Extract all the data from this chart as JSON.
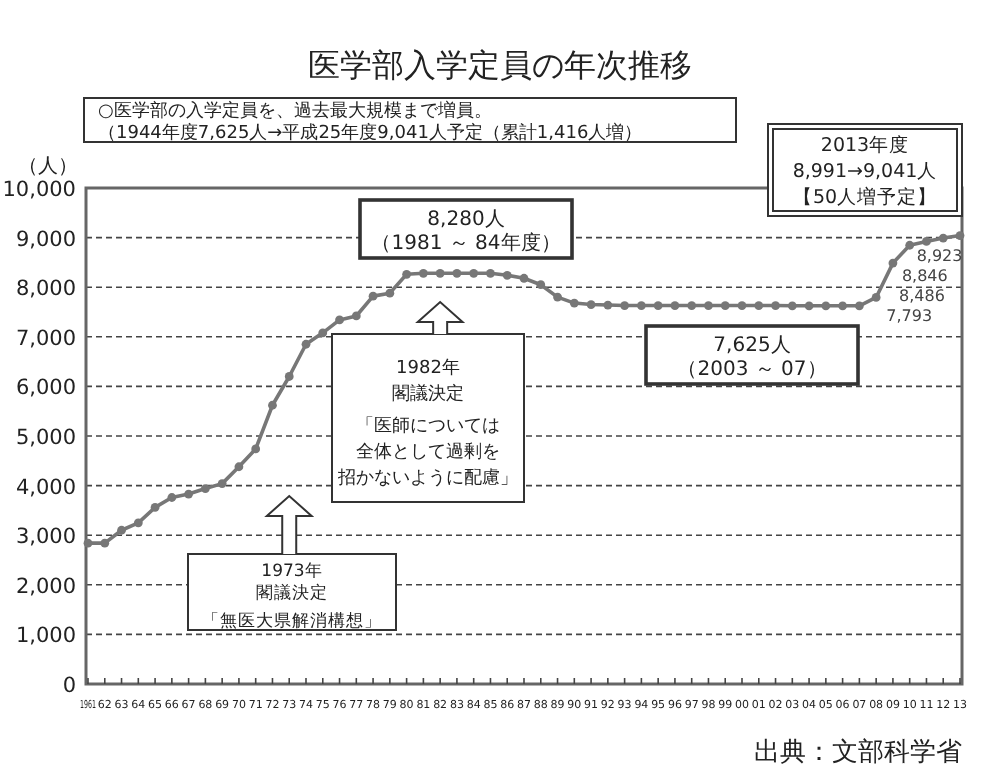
{
  "chart_data": {
    "type": "line",
    "title": "医学部入学定員の年次推移",
    "ylabel": "（人）",
    "x": [
      1961,
      1962,
      1963,
      1964,
      1965,
      1966,
      1967,
      1968,
      1969,
      1970,
      1971,
      1972,
      1973,
      1974,
      1975,
      1976,
      1977,
      1978,
      1979,
      1980,
      1981,
      1982,
      1983,
      1984,
      1985,
      1986,
      1987,
      1988,
      1989,
      1990,
      1991,
      1992,
      1993,
      1994,
      1995,
      1996,
      1997,
      1998,
      1999,
      2000,
      2001,
      2002,
      2003,
      2004,
      2005,
      2006,
      2007,
      2008,
      2009,
      2010,
      2011,
      2012,
      2013
    ],
    "series": [
      {
        "color": "#777777",
        "values": [
          2840,
          2840,
          3100,
          3250,
          3560,
          3760,
          3830,
          3940,
          4040,
          4380,
          4740,
          5620,
          6200,
          6850,
          7080,
          7340,
          7420,
          7820,
          7880,
          8260,
          8280,
          8280,
          8280,
          8280,
          8280,
          8240,
          8180,
          8050,
          7800,
          7680,
          7650,
          7640,
          7630,
          7630,
          7630,
          7630,
          7630,
          7630,
          7630,
          7630,
          7630,
          7630,
          7625,
          7625,
          7625,
          7625,
          7625,
          7793,
          8486,
          8846,
          8923,
          8991,
          9041
        ],
        "value_labels": [
          null,
          null,
          null,
          null,
          null,
          null,
          null,
          null,
          null,
          null,
          null,
          null,
          null,
          null,
          null,
          null,
          null,
          null,
          null,
          null,
          null,
          null,
          null,
          null,
          null,
          null,
          null,
          null,
          null,
          null,
          null,
          null,
          null,
          null,
          null,
          null,
          null,
          null,
          null,
          null,
          null,
          null,
          null,
          null,
          null,
          null,
          null,
          "7,793",
          "8,486",
          "8,846",
          "8,923",
          null,
          null
        ]
      }
    ],
    "xlim": [
      1961,
      2013
    ],
    "ylim": [
      0,
      10000
    ],
    "yticks": [
      {
        "value": 0,
        "label": "0"
      },
      {
        "value": 1000,
        "label": "1,000"
      },
      {
        "value": 2000,
        "label": "2,000"
      },
      {
        "value": 3000,
        "label": "3,000"
      },
      {
        "value": 4000,
        "label": "4,000"
      },
      {
        "value": 5000,
        "label": "5,000"
      },
      {
        "value": 6000,
        "label": "6,000"
      },
      {
        "value": 7000,
        "label": "7,000"
      },
      {
        "value": 8000,
        "label": "8,000"
      },
      {
        "value": 9000,
        "label": "9,000"
      },
      {
        "value": 10000,
        "label": "10,000"
      }
    ],
    "xticks": [
      {
        "value": 1961,
        "label": "1961"
      },
      {
        "value": 1962,
        "label": "62"
      },
      {
        "value": 1963,
        "label": "63"
      },
      {
        "value": 1964,
        "label": "64"
      },
      {
        "value": 1965,
        "label": "65"
      },
      {
        "value": 1966,
        "label": "66"
      },
      {
        "value": 1967,
        "label": "67"
      },
      {
        "value": 1968,
        "label": "68"
      },
      {
        "value": 1969,
        "label": "69"
      },
      {
        "value": 1970,
        "label": "70"
      },
      {
        "value": 1971,
        "label": "71"
      },
      {
        "value": 1972,
        "label": "72"
      },
      {
        "value": 1973,
        "label": "73"
      },
      {
        "value": 1974,
        "label": "74"
      },
      {
        "value": 1975,
        "label": "75"
      },
      {
        "value": 1976,
        "label": "76"
      },
      {
        "value": 1977,
        "label": "77"
      },
      {
        "value": 1978,
        "label": "78"
      },
      {
        "value": 1979,
        "label": "79"
      },
      {
        "value": 1980,
        "label": "80"
      },
      {
        "value": 1981,
        "label": "81"
      },
      {
        "value": 1982,
        "label": "82"
      },
      {
        "value": 1983,
        "label": "83"
      },
      {
        "value": 1984,
        "label": "84"
      },
      {
        "value": 1985,
        "label": "85"
      },
      {
        "value": 1986,
        "label": "86"
      },
      {
        "value": 1987,
        "label": "87"
      },
      {
        "value": 1988,
        "label": "88"
      },
      {
        "value": 1989,
        "label": "89"
      },
      {
        "value": 1990,
        "label": "90"
      },
      {
        "value": 1991,
        "label": "91"
      },
      {
        "value": 1992,
        "label": "92"
      },
      {
        "value": 1993,
        "label": "93"
      },
      {
        "value": 1994,
        "label": "94"
      },
      {
        "value": 1995,
        "label": "95"
      },
      {
        "value": 1996,
        "label": "96"
      },
      {
        "value": 1997,
        "label": "97"
      },
      {
        "value": 1998,
        "label": "98"
      },
      {
        "value": 1999,
        "label": "99"
      },
      {
        "value": 2000,
        "label": "00"
      },
      {
        "value": 2001,
        "label": "01"
      },
      {
        "value": 2002,
        "label": "02"
      },
      {
        "value": 2003,
        "label": "03"
      },
      {
        "value": 2004,
        "label": "04"
      },
      {
        "value": 2005,
        "label": "05"
      },
      {
        "value": 2006,
        "label": "06"
      },
      {
        "value": 2007,
        "label": "07"
      },
      {
        "value": 2008,
        "label": "08"
      },
      {
        "value": 2009,
        "label": "09"
      },
      {
        "value": 2010,
        "label": "10"
      },
      {
        "value": 2011,
        "label": "11"
      },
      {
        "value": 2012,
        "label": "12"
      },
      {
        "value": 2013,
        "label": "13"
      }
    ],
    "grid": "y",
    "marker": "circle",
    "annotations": [
      "○医学部の入学定員を、過去最大規模まで増員。",
      "（1944年度7,625人→平成25年度9,041人予定（累計1,416人増）",
      "2013年度",
      "8,991→9,041人",
      "【50人増予定】",
      "8,280人",
      "（1981 ～ 84年度）",
      "1982年",
      "閣議決定",
      "「医師については",
      "全体として過剰を",
      "招かないように配慮」",
      "7,625人",
      "（2003 ～ 07）",
      "1973年",
      "閣議決定",
      "「無医大県解消構想」",
      "出典：文部科学省"
    ]
  }
}
